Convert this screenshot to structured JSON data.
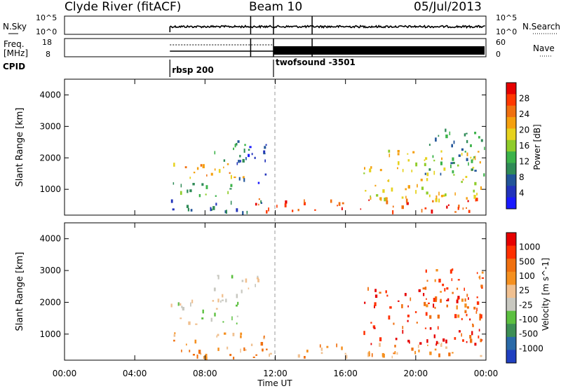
{
  "header": {
    "site": "Clyde River (fitACF)",
    "beam": "Beam 10",
    "date": "05/Jul/2013"
  },
  "noise_panel": {
    "left_label": "N.Sky",
    "right_label": "N.Search",
    "left_ticks": [
      "10^5",
      "10^0"
    ],
    "right_ticks": [
      "10^5",
      "10^0"
    ]
  },
  "freq_panel": {
    "left_label_1": "Freq.",
    "left_label_2": "[MHz]",
    "right_label": "Nave",
    "left_ticks": [
      "18",
      "8"
    ],
    "right_ticks": [
      "60",
      "0"
    ]
  },
  "cpid_panel": {
    "label": "CPID",
    "modes": [
      {
        "start_hour": 6.0,
        "name": "rbsp 200"
      },
      {
        "start_hour": 11.9,
        "name": "twofsound -3501"
      }
    ]
  },
  "chart_data": [
    {
      "type": "heatmap",
      "quantity": "Power",
      "xlabel": "",
      "ylabel": "Slant Range [km]",
      "xlim_hours": [
        0,
        24
      ],
      "ylim_km": [
        180,
        4500
      ],
      "yticks": [
        "1000",
        "2000",
        "3000",
        "4000"
      ],
      "colorbar": {
        "label": "Power [dB]",
        "ticks": [
          "28",
          "24",
          "20",
          "16",
          "12",
          "8",
          "4"
        ],
        "colors": [
          "#1a1aff",
          "#2233bb",
          "#225599",
          "#2f8b57",
          "#3cb34a",
          "#8fcc2a",
          "#e6d21e",
          "#f5a00f",
          "#f07010",
          "#ff3800",
          "#e60000"
        ]
      },
      "regions": [
        {
          "t": [
            6.0,
            10.3
          ],
          "r": [
            1350,
            1900
          ],
          "level": 7
        },
        {
          "t": [
            6.0,
            10.3
          ],
          "r": [
            800,
            1250
          ],
          "level": 4
        },
        {
          "t": [
            6.0,
            11.2
          ],
          "r": [
            250,
            700
          ],
          "level": 2
        },
        {
          "t": [
            8.0,
            10.5
          ],
          "r": [
            1900,
            2500
          ],
          "level": 3
        },
        {
          "t": [
            9.8,
            11.5
          ],
          "r": [
            1200,
            2600
          ],
          "level": 1
        },
        {
          "t": [
            10.6,
            23.8
          ],
          "r": [
            300,
            750
          ],
          "level": 9
        },
        {
          "t": [
            17.0,
            23.8
          ],
          "r": [
            700,
            2300
          ],
          "level": 6
        },
        {
          "t": [
            20.5,
            23.9
          ],
          "r": [
            1500,
            3000
          ],
          "level": 3
        }
      ]
    },
    {
      "type": "heatmap",
      "quantity": "Velocity",
      "xlabel": "Time UT",
      "ylabel": "Slant Range [km]",
      "xlim_hours": [
        0,
        24
      ],
      "ylim_km": [
        180,
        4500
      ],
      "xticks": [
        "00:00",
        "04:00",
        "08:00",
        "12:00",
        "16:00",
        "20:00",
        "00:00"
      ],
      "yticks": [
        "1000",
        "2000",
        "3000",
        "4000"
      ],
      "colorbar": {
        "label": "Velocity [m s^-1]",
        "ticks": [
          "1000",
          "500",
          "100",
          "25",
          "-25",
          "-100",
          "-500",
          "-1000"
        ],
        "colors": [
          "#2040c0",
          "#2a6aa8",
          "#3d8f55",
          "#5cc040",
          "#c8c8c0",
          "#f0c090",
          "#f59020",
          "#f07010",
          "#ff3000",
          "#e60000"
        ]
      },
      "regions": [
        {
          "t": [
            6.0,
            10.0
          ],
          "r": [
            1300,
            2100
          ],
          "level": 4
        },
        {
          "t": [
            6.0,
            11.5
          ],
          "r": [
            250,
            1100
          ],
          "level": 6
        },
        {
          "t": [
            10.0,
            23.8
          ],
          "r": [
            300,
            750
          ],
          "level": 6
        },
        {
          "t": [
            8.5,
            11.0
          ],
          "r": [
            2000,
            3000
          ],
          "level": 4
        },
        {
          "t": [
            17.0,
            23.8
          ],
          "r": [
            700,
            2500
          ],
          "level": 8
        },
        {
          "t": [
            20.5,
            23.9
          ],
          "r": [
            1500,
            3100
          ],
          "level": 7
        }
      ]
    }
  ]
}
